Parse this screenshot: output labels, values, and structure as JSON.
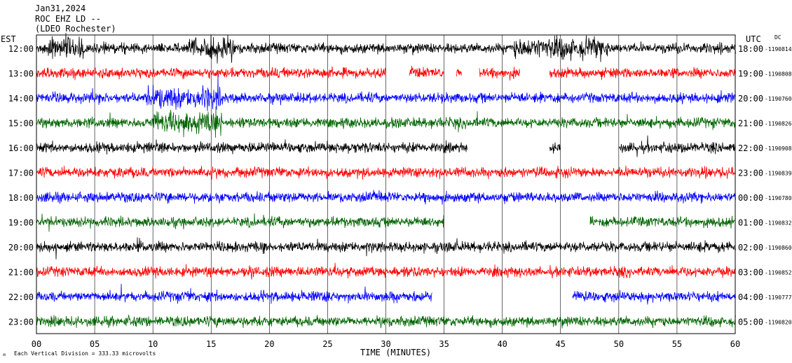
{
  "header": {
    "date": "Jan31,2024",
    "station": "ROC EHZ LD --",
    "location": "(LDEO Rochester)"
  },
  "labels": {
    "left_zone": "EST",
    "right_zone": "UTC",
    "dc": "DC",
    "x_axis": "TIME (MINUTES)",
    "scale_note": "Each Vertical Division =  333.33 microvolts"
  },
  "chart_data": {
    "type": "line",
    "title": "",
    "xlabel": "TIME (MINUTES)",
    "ylabel": "",
    "xlim": [
      0,
      60
    ],
    "x_ticks": [
      "00",
      "05",
      "10",
      "15",
      "20",
      "25",
      "30",
      "35",
      "40",
      "45",
      "50",
      "55",
      "60"
    ],
    "grid": true,
    "series": [
      {
        "local": "12:00",
        "utc": "18:00",
        "dc": "-1190814",
        "color": "#000000",
        "gaps": [],
        "bursts": [
          [
            1,
            4
          ],
          [
            13,
            17
          ],
          [
            41,
            49
          ]
        ]
      },
      {
        "local": "13:00",
        "utc": "19:00",
        "dc": "-1190808",
        "color": "#ff0000",
        "gaps": [
          [
            30,
            32
          ],
          [
            35,
            36
          ],
          [
            36.5,
            38
          ],
          [
            41.5,
            44
          ]
        ],
        "bursts": []
      },
      {
        "local": "14:00",
        "utc": "20:00",
        "dc": "-1190760",
        "color": "#0000ff",
        "gaps": [],
        "bursts": [
          [
            9.5,
            16
          ]
        ]
      },
      {
        "local": "15:00",
        "utc": "21:00",
        "dc": "-1190826",
        "color": "#006400",
        "gaps": [],
        "bursts": [
          [
            10,
            16
          ]
        ]
      },
      {
        "local": "16:00",
        "utc": "22:00",
        "dc": "-1190908",
        "color": "#000000",
        "gaps": [
          [
            37,
            44
          ],
          [
            45,
            50
          ]
        ],
        "bursts": []
      },
      {
        "local": "17:00",
        "utc": "23:00",
        "dc": "-1190839",
        "color": "#ff0000",
        "gaps": [],
        "bursts": []
      },
      {
        "local": "18:00",
        "utc": "00:00",
        "dc": "-1190780",
        "color": "#0000ff",
        "gaps": [],
        "bursts": []
      },
      {
        "local": "19:00",
        "utc": "01:00",
        "dc": "-1190832",
        "color": "#006400",
        "gaps": [
          [
            35,
            47.5
          ]
        ],
        "bursts": []
      },
      {
        "local": "20:00",
        "utc": "02:00",
        "dc": "-1190860",
        "color": "#000000",
        "gaps": [],
        "bursts": []
      },
      {
        "local": "21:00",
        "utc": "03:00",
        "dc": "-1190852",
        "color": "#ff0000",
        "gaps": [],
        "bursts": []
      },
      {
        "local": "22:00",
        "utc": "04:00",
        "dc": "-1190777",
        "color": "#0000ff",
        "gaps": [
          [
            34,
            46
          ]
        ],
        "bursts": []
      },
      {
        "local": "23:00",
        "utc": "05:00",
        "dc": "-1190820",
        "color": "#006400",
        "gaps": [],
        "bursts": []
      }
    ]
  }
}
